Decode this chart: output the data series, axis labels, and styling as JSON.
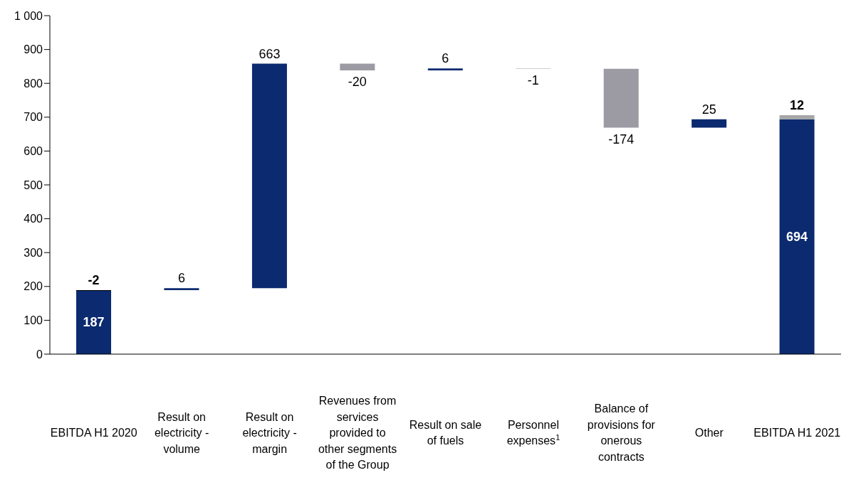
{
  "chart_data": {
    "type": "bar",
    "categories": [
      "EBITDA H1 2020",
      "Result on electricity - volume",
      "Result on electricity - margin",
      "Revenues from services provided to other segments of the Group",
      "Result on sale of fuels",
      "Personnel expenses$^{1}$",
      "Balance of provisions for onerous contracts",
      "Other",
      "EBITDA H1 2021"
    ],
    "series": [
      {
        "values": [
          187,
          6,
          663,
          -20,
          6,
          -1,
          -174,
          25,
          694
        ],
        "base": [
          0,
          189,
          195,
          858,
          838,
          844,
          843,
          669,
          0
        ],
        "colors": [
          "#0b2a6f",
          "#0b2a6f",
          "#0b2a6f",
          "#9c9aa3",
          "#0b2a6f",
          "#9c9aa3",
          "#9c9aa3",
          "#0b2a6f",
          "#0b2a6f"
        ]
      },
      {
        "values": [
          -2,
          null,
          null,
          null,
          null,
          null,
          null,
          null,
          12
        ],
        "base": [
          189,
          null,
          null,
          null,
          null,
          null,
          null,
          null,
          694
        ],
        "colors": [
          "#000000",
          null,
          null,
          null,
          null,
          null,
          null,
          null,
          "#a6a6a6"
        ]
      }
    ],
    "ylim": [
      0,
      1000
    ],
    "yticks": [
      0,
      100,
      200,
      300,
      400,
      500,
      600,
      700,
      800,
      900,
      {
        "value": 1000,
        "label": "1 000"
      }
    ],
    "data_labels": true,
    "grid": false,
    "legend": false
  }
}
